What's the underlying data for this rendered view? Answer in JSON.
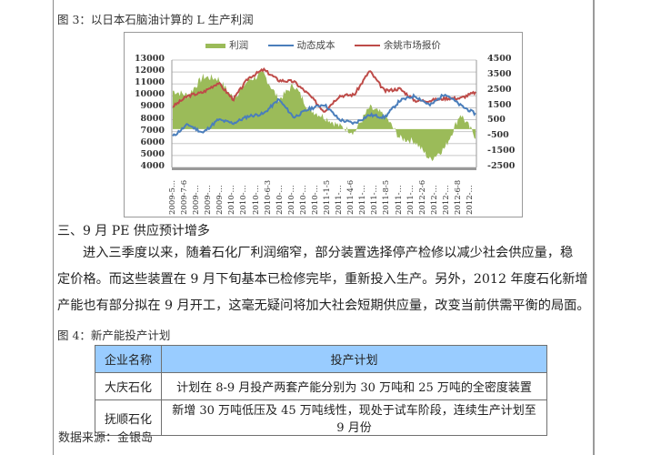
{
  "figure3": {
    "caption": "图 3：以日本石脑油计算的 L 生产利润"
  },
  "chart_data": {
    "type": "line",
    "title": "",
    "legend": [
      "利润",
      "动态成本",
      "余姚市场报价"
    ],
    "legend_position": "top",
    "colors": {
      "利润": "#9bbb59",
      "动态成本": "#4a7ebb",
      "余姚市场报价": "#be4b48"
    },
    "left_axis": {
      "ticks": [
        13000,
        12000,
        11000,
        10000,
        9000,
        8000,
        7000,
        6000,
        5000,
        4000
      ],
      "ylim": [
        4000,
        13000
      ],
      "series": [
        "动态成本",
        "余姚市场报价"
      ]
    },
    "right_axis": {
      "ticks": [
        4500,
        3500,
        2500,
        1500,
        500,
        -500,
        -1500,
        -2500
      ],
      "ylim": [
        -2500,
        4500
      ],
      "series": [
        "利润"
      ]
    },
    "x_tick_labels": [
      "2009-5...",
      "2009-7-6",
      "2009-...",
      "2009-...",
      "2009-...",
      "2010-...",
      "2010-...",
      "2010-...",
      "2010-6-3",
      "2010-...",
      "2010-...",
      "2010-...",
      "2010-...",
      "2011-1-5",
      "2011-...",
      "2011-4-6",
      "2011-...",
      "2011-...",
      "2011-8-5",
      "2011-...",
      "2011-...",
      "2012-2-6",
      "2012-...",
      "2012-...",
      "2012-6-8",
      "2012-..."
    ],
    "x": [
      "2009-05",
      "2009-07",
      "2009-09",
      "2009-11",
      "2010-01",
      "2010-03",
      "2010-05",
      "2010-07",
      "2010-09",
      "2010-11",
      "2011-01",
      "2011-03",
      "2011-05",
      "2011-07",
      "2011-09",
      "2011-11",
      "2012-01",
      "2012-03",
      "2012-05",
      "2012-07",
      "2012-09"
    ],
    "series": [
      {
        "name": "动态成本",
        "axis": "left",
        "values": [
          6600,
          7600,
          6900,
          8000,
          7700,
          8300,
          8500,
          9700,
          8200,
          8900,
          9300,
          8000,
          7700,
          8400,
          8200,
          9600,
          10000,
          9200,
          10200,
          9200,
          8500
        ]
      },
      {
        "name": "余姚市场报价",
        "axis": "left",
        "values": [
          9100,
          10000,
          10300,
          11100,
          9700,
          11500,
          12200,
          11300,
          11200,
          10100,
          8700,
          10000,
          10100,
          12100,
          10400,
          10600,
          9600,
          9600,
          9800,
          9800,
          10300
        ]
      },
      {
        "name": "利润",
        "axis": "right",
        "values": [
          2500,
          2200,
          3400,
          3300,
          2000,
          3200,
          3600,
          1900,
          2900,
          1300,
          800,
          200,
          -200,
          1400,
          900,
          -600,
          -800,
          -2000,
          -1200,
          1000,
          -500
        ]
      }
    ],
    "grid": true
  },
  "section3": {
    "heading": "三、9 月 PE 供应预计增多",
    "paragraph_lines": [
      "进入三季度以来，随着石化厂利润缩窄，部分装置选择停产检修以减少社会供应量，稳",
      "定价格。而这些装置在 9 月下旬基本已检修完毕，重新投入生产。另外，2012 年度石化新增",
      "产能也有部分拟在 9 月开工，这毫无疑问将加大社会短期供应量，改变当前供需平衡的局面。"
    ]
  },
  "figure4": {
    "caption": "图 4：新产能投产计划",
    "table": {
      "headers": [
        "企业名称",
        "投产计划"
      ],
      "rows": [
        [
          "大庆石化",
          "计划在 8-9 月投产两套产能分别为 30 万吨和 25 万吨的全密度装置"
        ],
        [
          "抚顺石化",
          "新增 30 万吨低压及 45 万吨线性，现处于试车阶段，连续生产计划至 9 月份"
        ]
      ]
    },
    "header_color": "#99ccff"
  },
  "source": "数据来源：金银岛"
}
